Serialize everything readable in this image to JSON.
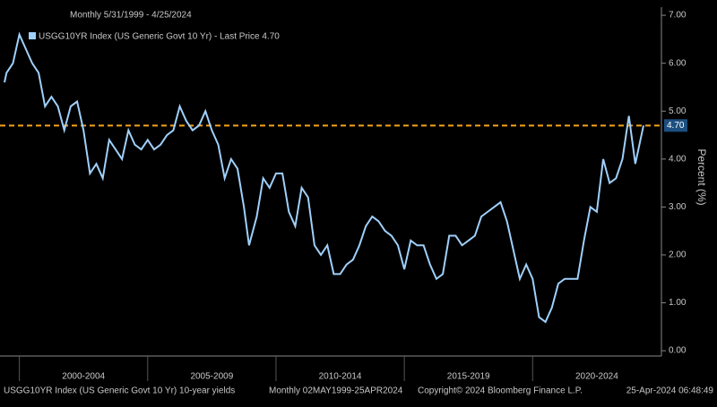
{
  "chart_data": {
    "type": "line",
    "header": "Monthly 5/31/1999 - 4/25/2024",
    "y_label": "Percent (%)",
    "footer": [
      "USGG10YR Index (US Generic Govt 10 Yr) 10-year yields",
      "Monthly 02MAY1999-25APR2024",
      "Copyright© 2024 Bloomberg Finance L.P.",
      "25-Apr-2024 06:48:49"
    ],
    "x": [
      1999.42,
      1999.5,
      1999.75,
      2000.0,
      2000.25,
      2000.5,
      2000.75,
      2001.0,
      2001.25,
      2001.5,
      2001.75,
      2002.0,
      2002.25,
      2002.5,
      2002.75,
      2003.0,
      2003.25,
      2003.5,
      2003.75,
      2004.0,
      2004.25,
      2004.5,
      2004.75,
      2005.0,
      2005.25,
      2005.5,
      2005.75,
      2006.0,
      2006.25,
      2006.5,
      2006.75,
      2007.0,
      2007.25,
      2007.5,
      2007.75,
      2008.0,
      2008.25,
      2008.5,
      2008.75,
      2008.95,
      2009.25,
      2009.5,
      2009.75,
      2010.0,
      2010.25,
      2010.5,
      2010.75,
      2011.0,
      2011.25,
      2011.5,
      2011.75,
      2012.0,
      2012.25,
      2012.5,
      2012.75,
      2013.0,
      2013.25,
      2013.5,
      2013.75,
      2014.0,
      2014.25,
      2014.5,
      2014.75,
      2015.0,
      2015.25,
      2015.5,
      2015.75,
      2016.0,
      2016.25,
      2016.5,
      2016.75,
      2017.0,
      2017.25,
      2017.5,
      2017.75,
      2018.0,
      2018.25,
      2018.5,
      2018.75,
      2019.0,
      2019.25,
      2019.5,
      2019.75,
      2020.0,
      2020.25,
      2020.5,
      2020.75,
      2021.0,
      2021.25,
      2021.5,
      2021.75,
      2022.0,
      2022.25,
      2022.5,
      2022.75,
      2023.0,
      2023.25,
      2023.5,
      2023.75,
      2024.0,
      2024.32
    ],
    "series": [
      {
        "name": "USGG10YR Index (US Generic Govt 10 Yr) - Last Price 4.70",
        "color": "#9fd0fb",
        "values": [
          5.6,
          5.8,
          6.0,
          6.6,
          6.3,
          6.0,
          5.8,
          5.1,
          5.3,
          5.1,
          4.6,
          5.1,
          5.2,
          4.6,
          3.7,
          3.9,
          3.6,
          4.4,
          4.2,
          4.0,
          4.6,
          4.3,
          4.2,
          4.4,
          4.2,
          4.3,
          4.5,
          4.6,
          5.1,
          4.8,
          4.6,
          4.7,
          5.0,
          4.6,
          4.3,
          3.6,
          4.0,
          3.8,
          3.0,
          2.2,
          2.8,
          3.6,
          3.4,
          3.7,
          3.7,
          2.9,
          2.6,
          3.4,
          3.2,
          2.2,
          2.0,
          2.2,
          1.6,
          1.6,
          1.8,
          1.9,
          2.2,
          2.6,
          2.8,
          2.7,
          2.5,
          2.4,
          2.2,
          1.7,
          2.3,
          2.2,
          2.2,
          1.8,
          1.5,
          1.6,
          2.4,
          2.4,
          2.2,
          2.3,
          2.4,
          2.8,
          2.9,
          3.0,
          3.1,
          2.7,
          2.1,
          1.5,
          1.8,
          1.5,
          0.7,
          0.6,
          0.9,
          1.4,
          1.5,
          1.5,
          1.5,
          2.3,
          3.0,
          2.9,
          4.0,
          3.5,
          3.6,
          4.0,
          4.9,
          3.9,
          4.7
        ]
      }
    ],
    "reference_line": {
      "value": 4.7,
      "label": "4.70",
      "color": "#f5a31a"
    },
    "xlim": [
      1999.42,
      2024.32
    ],
    "xticks": [
      {
        "value": 2000,
        "label": "2000-2004"
      },
      {
        "value": 2005,
        "label": "2005-2009"
      },
      {
        "value": 2010,
        "label": "2010-2014"
      },
      {
        "value": 2015,
        "label": "2015-2019"
      },
      {
        "value": 2020,
        "label": "2020-2024"
      }
    ],
    "ylim": [
      -0.11,
      7.17
    ],
    "yticks": [
      {
        "value": 0,
        "label": "0.00"
      },
      {
        "value": 1,
        "label": "1.00"
      },
      {
        "value": 2,
        "label": "2.00"
      },
      {
        "value": 3,
        "label": "3.00"
      },
      {
        "value": 4,
        "label": "4.00"
      },
      {
        "value": 5,
        "label": "5.00"
      },
      {
        "value": 6,
        "label": "6.00"
      },
      {
        "value": 7,
        "label": "7.00"
      }
    ]
  }
}
